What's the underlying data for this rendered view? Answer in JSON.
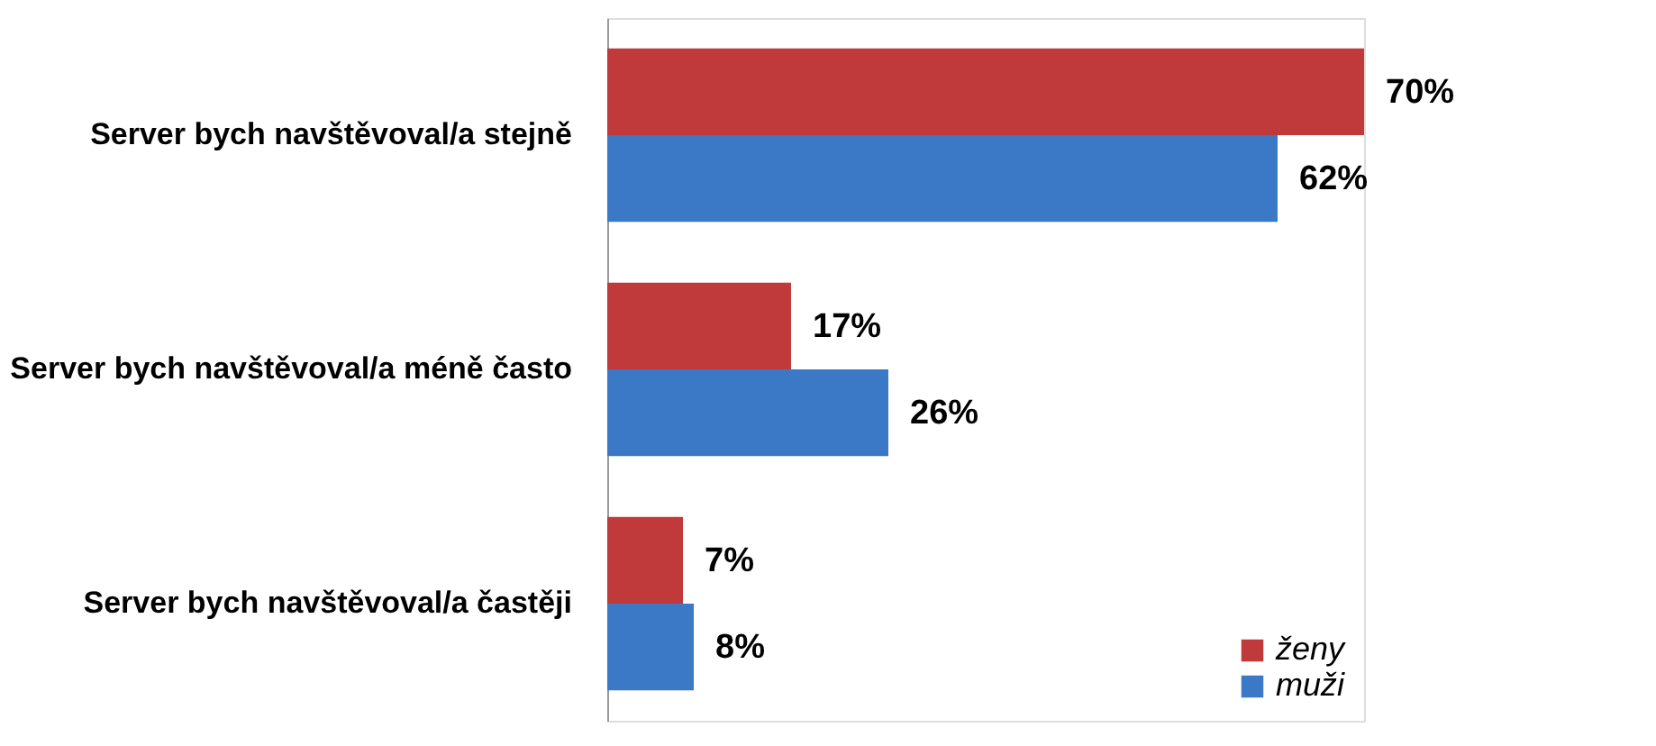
{
  "chart_data": {
    "type": "bar",
    "orientation": "horizontal",
    "categories": [
      "Server bych navštěvoval/a stejně",
      "Server bych navštěvoval/a méně často",
      "Server bych navštěvoval/a častěji"
    ],
    "series": [
      {
        "name": "ženy",
        "color": "#c0393b",
        "values": [
          70,
          17,
          7
        ],
        "value_labels": [
          "70%",
          "17%",
          "7%"
        ]
      },
      {
        "name": "muži",
        "color": "#3b78c6",
        "values": [
          62,
          26,
          8
        ],
        "value_labels": [
          "62%",
          "26%",
          "8%"
        ]
      }
    ],
    "legend": "bottom right"
  }
}
